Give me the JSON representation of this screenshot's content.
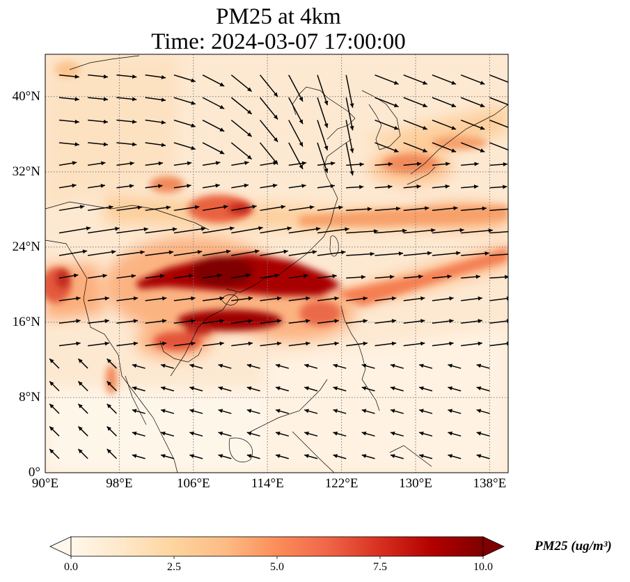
{
  "title_line1": "PM25 at 4km",
  "title_line2": "Time: 2024-03-07 17:00:00",
  "map": {
    "lon_range": [
      90,
      140
    ],
    "lat_range": [
      0,
      44.5
    ],
    "lon_ticks": [
      {
        "value": 90,
        "label": "90°E"
      },
      {
        "value": 98,
        "label": "98°E"
      },
      {
        "value": 106,
        "label": "106°E"
      },
      {
        "value": 114,
        "label": "114°E"
      },
      {
        "value": 122,
        "label": "122°E"
      },
      {
        "value": 130,
        "label": "130°E"
      },
      {
        "value": 138,
        "label": "138°E"
      }
    ],
    "lat_ticks": [
      {
        "value": 0,
        "label": "0°"
      },
      {
        "value": 8,
        "label": "8°N"
      },
      {
        "value": 16,
        "label": "16°N"
      },
      {
        "value": 24,
        "label": "24°N"
      },
      {
        "value": 32,
        "label": "32°N"
      },
      {
        "value": 40,
        "label": "40°N"
      }
    ],
    "gridlines": "dotted",
    "colormap": {
      "name": "OrRd",
      "colors": [
        "#fff7ec",
        "#fee8c8",
        "#fdd49e",
        "#fdbb84",
        "#fc8d59",
        "#ef6548",
        "#d7301f",
        "#b30000",
        "#7f0000"
      ]
    },
    "pm25_features": [
      {
        "lon": 111.5,
        "lat": 20.5,
        "value": 10
      },
      {
        "lon": 116,
        "lat": 19.5,
        "value": 9
      },
      {
        "lon": 104,
        "lat": 20.5,
        "value": 9
      },
      {
        "lon": 110,
        "lat": 16.5,
        "value": 9
      },
      {
        "lon": 106,
        "lat": 14,
        "value": 6
      },
      {
        "lon": 108,
        "lat": 28,
        "value": 7
      },
      {
        "lon": 118,
        "lat": 28,
        "value": 5
      },
      {
        "lon": 130,
        "lat": 28,
        "value": 5
      },
      {
        "lon": 126,
        "lat": 21.5,
        "value": 6
      },
      {
        "lon": 134,
        "lat": 23,
        "value": 5
      },
      {
        "lon": 128,
        "lat": 34.5,
        "value": 4
      },
      {
        "lon": 91,
        "lat": 20,
        "value": 6
      },
      {
        "lon": 96,
        "lat": 9.5,
        "value": 5
      },
      {
        "lon": 101,
        "lat": 41,
        "value": 4
      },
      {
        "lon": 134,
        "lat": 40,
        "value": 3
      }
    ]
  },
  "colorbar": {
    "min": 0,
    "max": 10,
    "extend": "both",
    "ticks": [
      {
        "value": 0,
        "label": "0.0"
      },
      {
        "value": 2.5,
        "label": "2.5"
      },
      {
        "value": 5,
        "label": "5.0"
      },
      {
        "value": 7.5,
        "label": "7.5"
      },
      {
        "value": 10,
        "label": "10.0"
      }
    ],
    "label": "PM25 (ug/m³)"
  }
}
